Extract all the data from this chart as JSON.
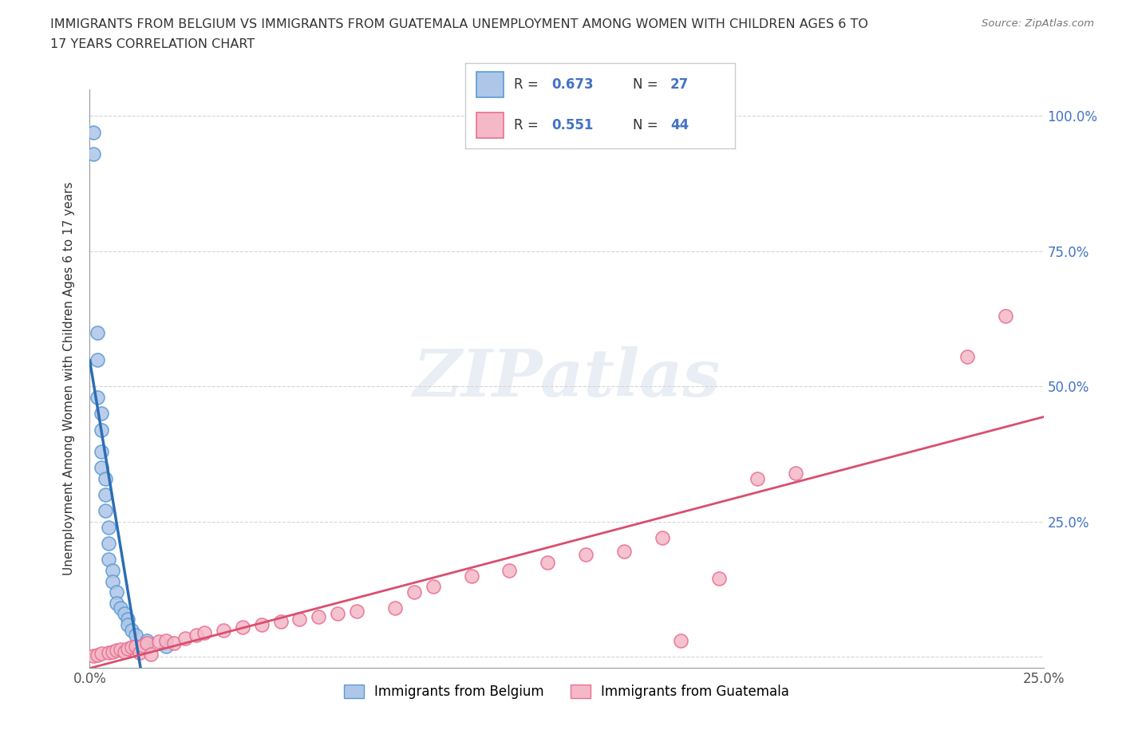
{
  "title_line1": "IMMIGRANTS FROM BELGIUM VS IMMIGRANTS FROM GUATEMALA UNEMPLOYMENT AMONG WOMEN WITH CHILDREN AGES 6 TO",
  "title_line2": "17 YEARS CORRELATION CHART",
  "source_text": "Source: ZipAtlas.com",
  "ylabel": "Unemployment Among Women with Children Ages 6 to 17 years",
  "watermark": "ZIPatlas",
  "belgium_R": 0.673,
  "belgium_N": 27,
  "guatemala_R": 0.551,
  "guatemala_N": 44,
  "belgium_color": "#aec6e8",
  "belgium_edge_color": "#5b9bd5",
  "belgium_line_color": "#2d6eb4",
  "guatemala_color": "#f4b8c8",
  "guatemala_edge_color": "#e87090",
  "guatemala_line_color": "#d94f6e",
  "xlim": [
    0.0,
    0.25
  ],
  "ylim": [
    -0.02,
    1.05
  ],
  "xticks": [
    0.0,
    0.05,
    0.1,
    0.15,
    0.2,
    0.25
  ],
  "xtick_labels": [
    "0.0%",
    "",
    "",
    "",
    "",
    "25.0%"
  ],
  "ytick_right_labels": [
    "",
    "25.0%",
    "50.0%",
    "75.0%",
    "100.0%"
  ],
  "belgium_x": [
    0.001,
    0.001,
    0.002,
    0.002,
    0.002,
    0.003,
    0.003,
    0.003,
    0.003,
    0.004,
    0.004,
    0.004,
    0.005,
    0.005,
    0.005,
    0.006,
    0.006,
    0.007,
    0.007,
    0.008,
    0.009,
    0.01,
    0.01,
    0.011,
    0.012,
    0.015,
    0.02
  ],
  "belgium_y": [
    0.97,
    0.93,
    0.6,
    0.55,
    0.48,
    0.45,
    0.42,
    0.38,
    0.35,
    0.33,
    0.3,
    0.27,
    0.24,
    0.21,
    0.18,
    0.16,
    0.14,
    0.12,
    0.1,
    0.09,
    0.08,
    0.07,
    0.06,
    0.05,
    0.04,
    0.03,
    0.02
  ],
  "guatemala_x": [
    0.001,
    0.002,
    0.003,
    0.005,
    0.006,
    0.007,
    0.008,
    0.009,
    0.01,
    0.011,
    0.012,
    0.013,
    0.014,
    0.015,
    0.016,
    0.018,
    0.02,
    0.022,
    0.025,
    0.028,
    0.03,
    0.035,
    0.04,
    0.045,
    0.05,
    0.055,
    0.06,
    0.065,
    0.07,
    0.08,
    0.085,
    0.09,
    0.1,
    0.11,
    0.12,
    0.13,
    0.14,
    0.15,
    0.155,
    0.165,
    0.175,
    0.185,
    0.23,
    0.24
  ],
  "guatemala_y": [
    0.002,
    0.004,
    0.006,
    0.008,
    0.01,
    0.012,
    0.014,
    0.01,
    0.016,
    0.018,
    0.02,
    0.008,
    0.022,
    0.025,
    0.005,
    0.028,
    0.03,
    0.025,
    0.035,
    0.04,
    0.045,
    0.05,
    0.055,
    0.06,
    0.065,
    0.07,
    0.075,
    0.08,
    0.085,
    0.09,
    0.12,
    0.13,
    0.15,
    0.16,
    0.175,
    0.19,
    0.195,
    0.22,
    0.03,
    0.145,
    0.33,
    0.34,
    0.555,
    0.63
  ]
}
